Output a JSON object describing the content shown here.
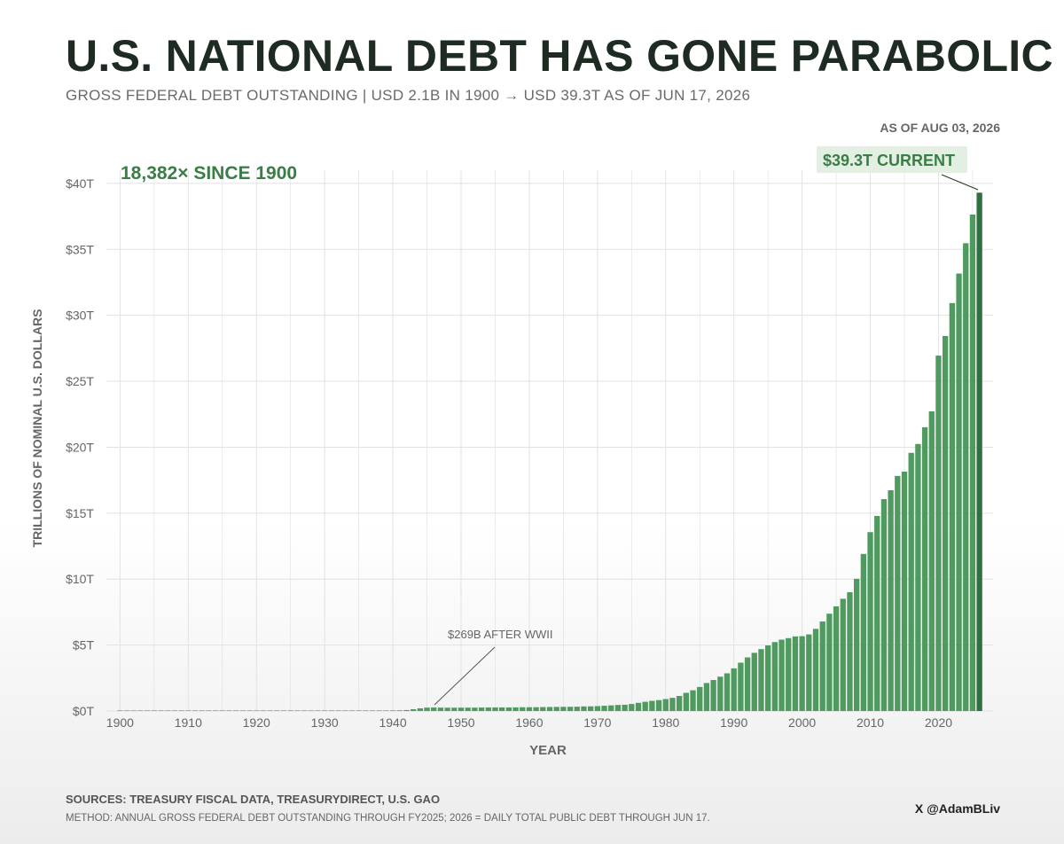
{
  "header": {
    "title": "U.S. NATIONAL DEBT HAS GONE PARABOLIC",
    "subtitle": "GROSS FEDERAL DEBT OUTSTANDING  |  USD 2.1B IN 1900  →  USD 39.3T AS OF JUN 17, 2026",
    "as_of": "AS OF AUG 03, 2026"
  },
  "footer": {
    "sources": "SOURCES: TREASURY FISCAL DATA, TREASURYDIRECT, U.S. GAO",
    "method": "METHOD: ANNUAL GROSS FEDERAL DEBT OUTSTANDING THROUGH FY2025; 2026 = DAILY TOTAL PUBLIC DEBT THROUGH JUN 17.",
    "handle": "X @AdamBLiv"
  },
  "colors": {
    "bar": "#4e9a5f",
    "bar_current": "#2e7040",
    "accent_text": "#3a7d46",
    "callout_bg": "#e4efe4",
    "grid": "#e2e2e2"
  },
  "chart_data": {
    "type": "bar",
    "title": "U.S. NATIONAL DEBT HAS GONE PARABOLIC",
    "xlabel": "YEAR",
    "ylabel": "TRILLIONS OF NOMINAL U.S. DOLLARS",
    "x_ticks": [
      1900,
      1910,
      1920,
      1930,
      1940,
      1950,
      1960,
      1970,
      1980,
      1990,
      2000,
      2010,
      2020
    ],
    "y_ticks": [
      0,
      5,
      10,
      15,
      20,
      25,
      30,
      35,
      40
    ],
    "y_tick_labels": [
      "$0T",
      "$5T",
      "$10T",
      "$15T",
      "$20T",
      "$25T",
      "$30T",
      "$35T",
      "$40T"
    ],
    "xlim": [
      1898,
      2028
    ],
    "ylim": [
      0,
      41
    ],
    "grid": true,
    "legend": "none",
    "units": "trillions USD",
    "series": [
      {
        "years": [
          1900,
          1901,
          1902,
          1903,
          1904,
          1905,
          1906,
          1907,
          1908,
          1909,
          1910,
          1911,
          1912,
          1913,
          1914,
          1915,
          1916,
          1917,
          1918,
          1919,
          1920,
          1921,
          1922,
          1923,
          1924,
          1925,
          1926,
          1927,
          1928,
          1929,
          1930,
          1931,
          1932,
          1933,
          1934,
          1935,
          1936,
          1937,
          1938,
          1939,
          1940,
          1941,
          1942,
          1943,
          1944,
          1945,
          1946,
          1947,
          1948,
          1949,
          1950,
          1951,
          1952,
          1953,
          1954,
          1955,
          1956,
          1957,
          1958,
          1959,
          1960,
          1961,
          1962,
          1963,
          1964,
          1965,
          1966,
          1967,
          1968,
          1969,
          1970,
          1971,
          1972,
          1973,
          1974,
          1975,
          1976,
          1977,
          1978,
          1979,
          1980,
          1981,
          1982,
          1983,
          1984,
          1985,
          1986,
          1987,
          1988,
          1989,
          1990,
          1991,
          1992,
          1993,
          1994,
          1995,
          1996,
          1997,
          1998,
          1999,
          2000,
          2001,
          2002,
          2003,
          2004,
          2005,
          2006,
          2007,
          2008,
          2009,
          2010,
          2011,
          2012,
          2013,
          2014,
          2015,
          2016,
          2017,
          2018,
          2019,
          2020,
          2021,
          2022,
          2023,
          2024,
          2025,
          2026
        ],
        "values": [
          0.0021,
          0.0021,
          0.0022,
          0.0022,
          0.0022,
          0.0022,
          0.0022,
          0.0024,
          0.0026,
          0.0026,
          0.0026,
          0.0027,
          0.0027,
          0.0027,
          0.0028,
          0.0029,
          0.003,
          0.006,
          0.012,
          0.0256,
          0.024,
          0.0234,
          0.0228,
          0.0221,
          0.0213,
          0.0206,
          0.0196,
          0.0186,
          0.0176,
          0.0169,
          0.0162,
          0.0168,
          0.0195,
          0.0225,
          0.027,
          0.0287,
          0.0338,
          0.0365,
          0.0372,
          0.0404,
          0.043,
          0.049,
          0.0725,
          0.137,
          0.201,
          0.259,
          0.269,
          0.258,
          0.252,
          0.253,
          0.257,
          0.255,
          0.259,
          0.266,
          0.271,
          0.274,
          0.273,
          0.272,
          0.276,
          0.285,
          0.287,
          0.289,
          0.299,
          0.306,
          0.312,
          0.317,
          0.32,
          0.326,
          0.348,
          0.354,
          0.371,
          0.398,
          0.427,
          0.458,
          0.475,
          0.533,
          0.62,
          0.699,
          0.772,
          0.827,
          0.908,
          0.998,
          1.142,
          1.377,
          1.572,
          1.823,
          2.125,
          2.35,
          2.602,
          2.857,
          3.233,
          3.665,
          4.065,
          4.411,
          4.693,
          4.974,
          5.225,
          5.413,
          5.526,
          5.656,
          5.674,
          5.807,
          6.228,
          6.783,
          7.379,
          7.933,
          8.507,
          9.008,
          10.025,
          11.91,
          13.562,
          14.79,
          16.066,
          16.738,
          17.824,
          18.151,
          19.573,
          20.245,
          21.516,
          22.719,
          26.945,
          28.428,
          30.929,
          33.167,
          35.464,
          37.638,
          39.3
        ]
      }
    ],
    "annotations": [
      {
        "text": "18,382× SINCE 1900"
      },
      {
        "text": "$39.3T CURRENT",
        "year": 2026,
        "value": 39.3
      },
      {
        "text": "$269B AFTER WWII",
        "year": 1946,
        "value": 0.269
      }
    ]
  }
}
